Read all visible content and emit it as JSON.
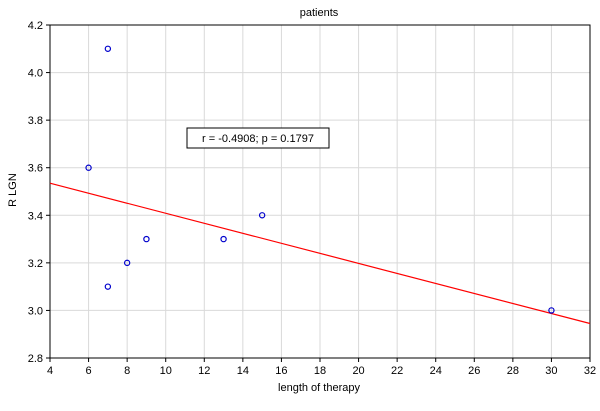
{
  "chart_data": {
    "type": "scatter",
    "title": "patients",
    "xlabel": "length of therapy",
    "ylabel": "R LGN",
    "xlim": [
      4,
      32
    ],
    "ylim": [
      2.8,
      4.2
    ],
    "xticks": [
      4,
      6,
      8,
      10,
      12,
      14,
      16,
      18,
      20,
      22,
      24,
      26,
      28,
      30,
      32
    ],
    "yticks": [
      2.8,
      3.0,
      3.2,
      3.4,
      3.6,
      3.8,
      4.0,
      4.2
    ],
    "grid": true,
    "points": [
      {
        "x": 6,
        "y": 3.6
      },
      {
        "x": 7,
        "y": 4.1
      },
      {
        "x": 7,
        "y": 3.1
      },
      {
        "x": 8,
        "y": 3.2
      },
      {
        "x": 9,
        "y": 3.3
      },
      {
        "x": 13,
        "y": 3.3
      },
      {
        "x": 15,
        "y": 3.4
      },
      {
        "x": 30,
        "y": 3.0
      }
    ],
    "fit_line": {
      "x": [
        4,
        32
      ],
      "y": [
        3.535,
        2.945
      ]
    },
    "annotation": "r = -0.4908; p = 0.1797",
    "colors": {
      "points": "#0000cc",
      "fit": "#ff0000",
      "grid": "#d9d9d9"
    }
  }
}
